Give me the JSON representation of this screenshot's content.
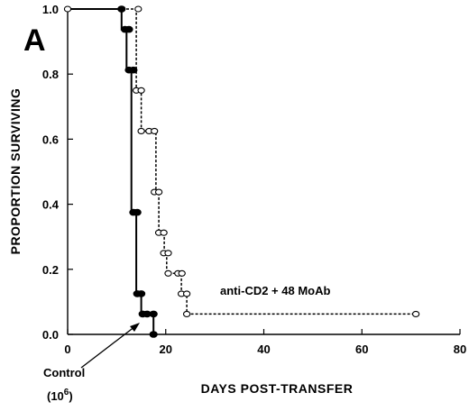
{
  "chart_data": {
    "type": "line",
    "panel_label": "A",
    "xlabel": "DAYS POST-TRANSFER",
    "ylabel": "PROPORTION SURVIVING",
    "xlim": [
      0,
      80
    ],
    "ylim": [
      0,
      1
    ],
    "x_ticks": [
      0,
      20,
      40,
      60,
      80
    ],
    "y_ticks": [
      0.0,
      0.2,
      0.4,
      0.6,
      0.8,
      1.0
    ],
    "y_tick_labels": [
      "0.0",
      "0.2",
      "0.4",
      "0.6",
      "0.8",
      "1.0"
    ],
    "grid": false,
    "series": [
      {
        "name": "Control (10^6)",
        "style": "solid",
        "marker": "filled-circle",
        "color": "#000000",
        "x": [
          0,
          11,
          11,
          12,
          12,
          13,
          13,
          14,
          14,
          15,
          15,
          16,
          16,
          17.5,
          17.5
        ],
        "y": [
          1.0,
          1.0,
          0.9375,
          0.9375,
          0.8125,
          0.8125,
          0.375,
          0.375,
          0.125,
          0.125,
          0.0625,
          0.0625,
          0.0625,
          0.0625,
          0.0
        ],
        "markers": [
          [
            11,
            1.0
          ],
          [
            11.7,
            0.9375
          ],
          [
            12.5,
            0.9375
          ],
          [
            12.5,
            0.8125
          ],
          [
            13.4,
            0.8125
          ],
          [
            13.4,
            0.375
          ],
          [
            14.2,
            0.375
          ],
          [
            14.2,
            0.125
          ],
          [
            15.0,
            0.125
          ],
          [
            15.3,
            0.0625
          ],
          [
            16.2,
            0.0625
          ],
          [
            17.5,
            0.0625
          ],
          [
            17.5,
            0.0
          ]
        ]
      },
      {
        "name": "anti-CD2 + 48 MoAb",
        "style": "dashed",
        "marker": "open-circle",
        "color": "#000000",
        "x": [
          0,
          14,
          14,
          15,
          15,
          16.5,
          16.5,
          18,
          18,
          18.6,
          18.6,
          19.7,
          19.7,
          20.2,
          20.2,
          22.5,
          22.5,
          23.2,
          23.2,
          24.3,
          24.3,
          71
        ],
        "y": [
          1.0,
          1.0,
          0.75,
          0.75,
          0.625,
          0.625,
          0.625,
          0.625,
          0.4375,
          0.4375,
          0.3125,
          0.3125,
          0.25,
          0.25,
          0.1875,
          0.1875,
          0.1875,
          0.1875,
          0.125,
          0.125,
          0.0625,
          0.0625
        ],
        "markers": [
          [
            0,
            1.0
          ],
          [
            14.4,
            1.0
          ],
          [
            14.0,
            0.75
          ],
          [
            15.0,
            0.75
          ],
          [
            15.0,
            0.625
          ],
          [
            16.6,
            0.625
          ],
          [
            17.7,
            0.625
          ],
          [
            17.7,
            0.4375
          ],
          [
            18.6,
            0.4375
          ],
          [
            18.6,
            0.3125
          ],
          [
            19.6,
            0.3125
          ],
          [
            19.6,
            0.25
          ],
          [
            20.5,
            0.25
          ],
          [
            20.5,
            0.1875
          ],
          [
            22.5,
            0.1875
          ],
          [
            23.3,
            0.1875
          ],
          [
            23.2,
            0.125
          ],
          [
            24.3,
            0.125
          ],
          [
            24.3,
            0.0625
          ],
          [
            71,
            0.0625
          ]
        ]
      }
    ],
    "annotations": {
      "series_label": "anti-CD2 + 48 MoAb",
      "control_label": "Control",
      "control_dose_base": "(10",
      "control_dose_exp": "6",
      "control_dose_close": ")"
    }
  }
}
